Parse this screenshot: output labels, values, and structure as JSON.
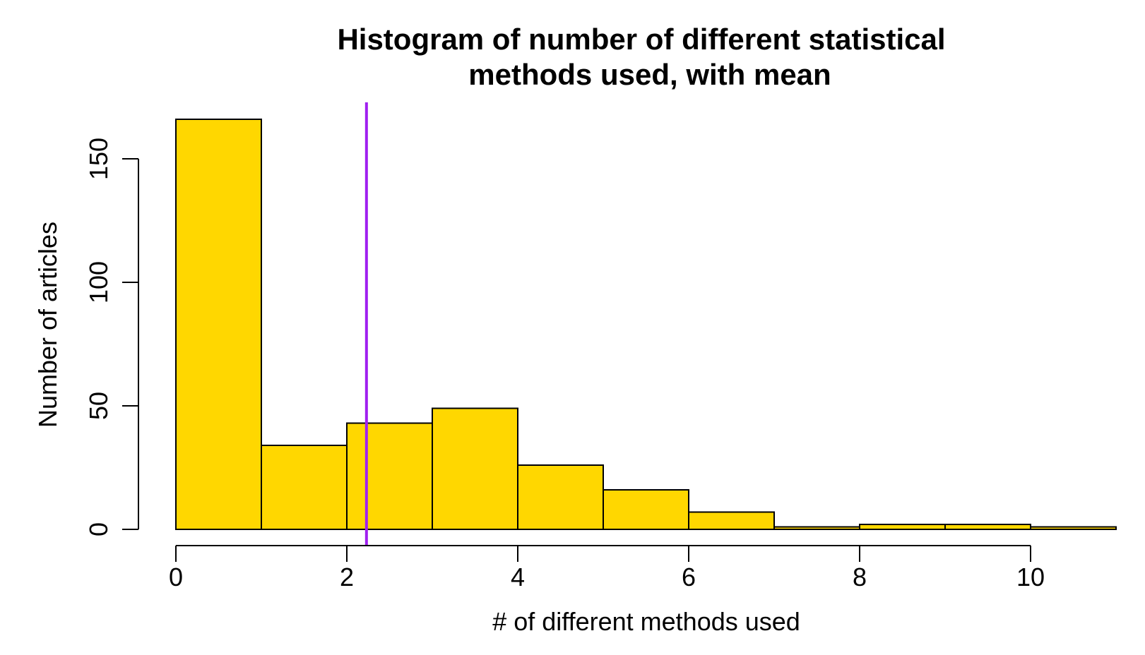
{
  "chart_data": {
    "type": "bar",
    "subtype": "histogram",
    "title_lines": [
      "Histogram of number of different statistical",
      "methods used, with mean"
    ],
    "xlabel": "# of different methods used",
    "ylabel": "Number of articles",
    "bin_edges": [
      0,
      1,
      2,
      3,
      4,
      5,
      6,
      7,
      8,
      9,
      10,
      11
    ],
    "counts": [
      166,
      34,
      43,
      49,
      26,
      16,
      7,
      1,
      2,
      2,
      1
    ],
    "xlim": [
      0,
      11
    ],
    "ylim": [
      0,
      166
    ],
    "x_ticks": [
      0,
      2,
      4,
      6,
      8,
      10
    ],
    "x_tick_labels": [
      "0",
      "2",
      "4",
      "6",
      "8",
      "10"
    ],
    "y_ticks": [
      0,
      50,
      100,
      150
    ],
    "y_tick_labels": [
      "0",
      "50",
      "100",
      "150"
    ],
    "mean_line": {
      "x": 2.23
    },
    "grid": false,
    "legend": "none",
    "colors": {
      "bar_fill": "#FFD700",
      "bar_stroke": "#000000",
      "mean_line": "#A020F0",
      "axis": "#000000"
    }
  }
}
